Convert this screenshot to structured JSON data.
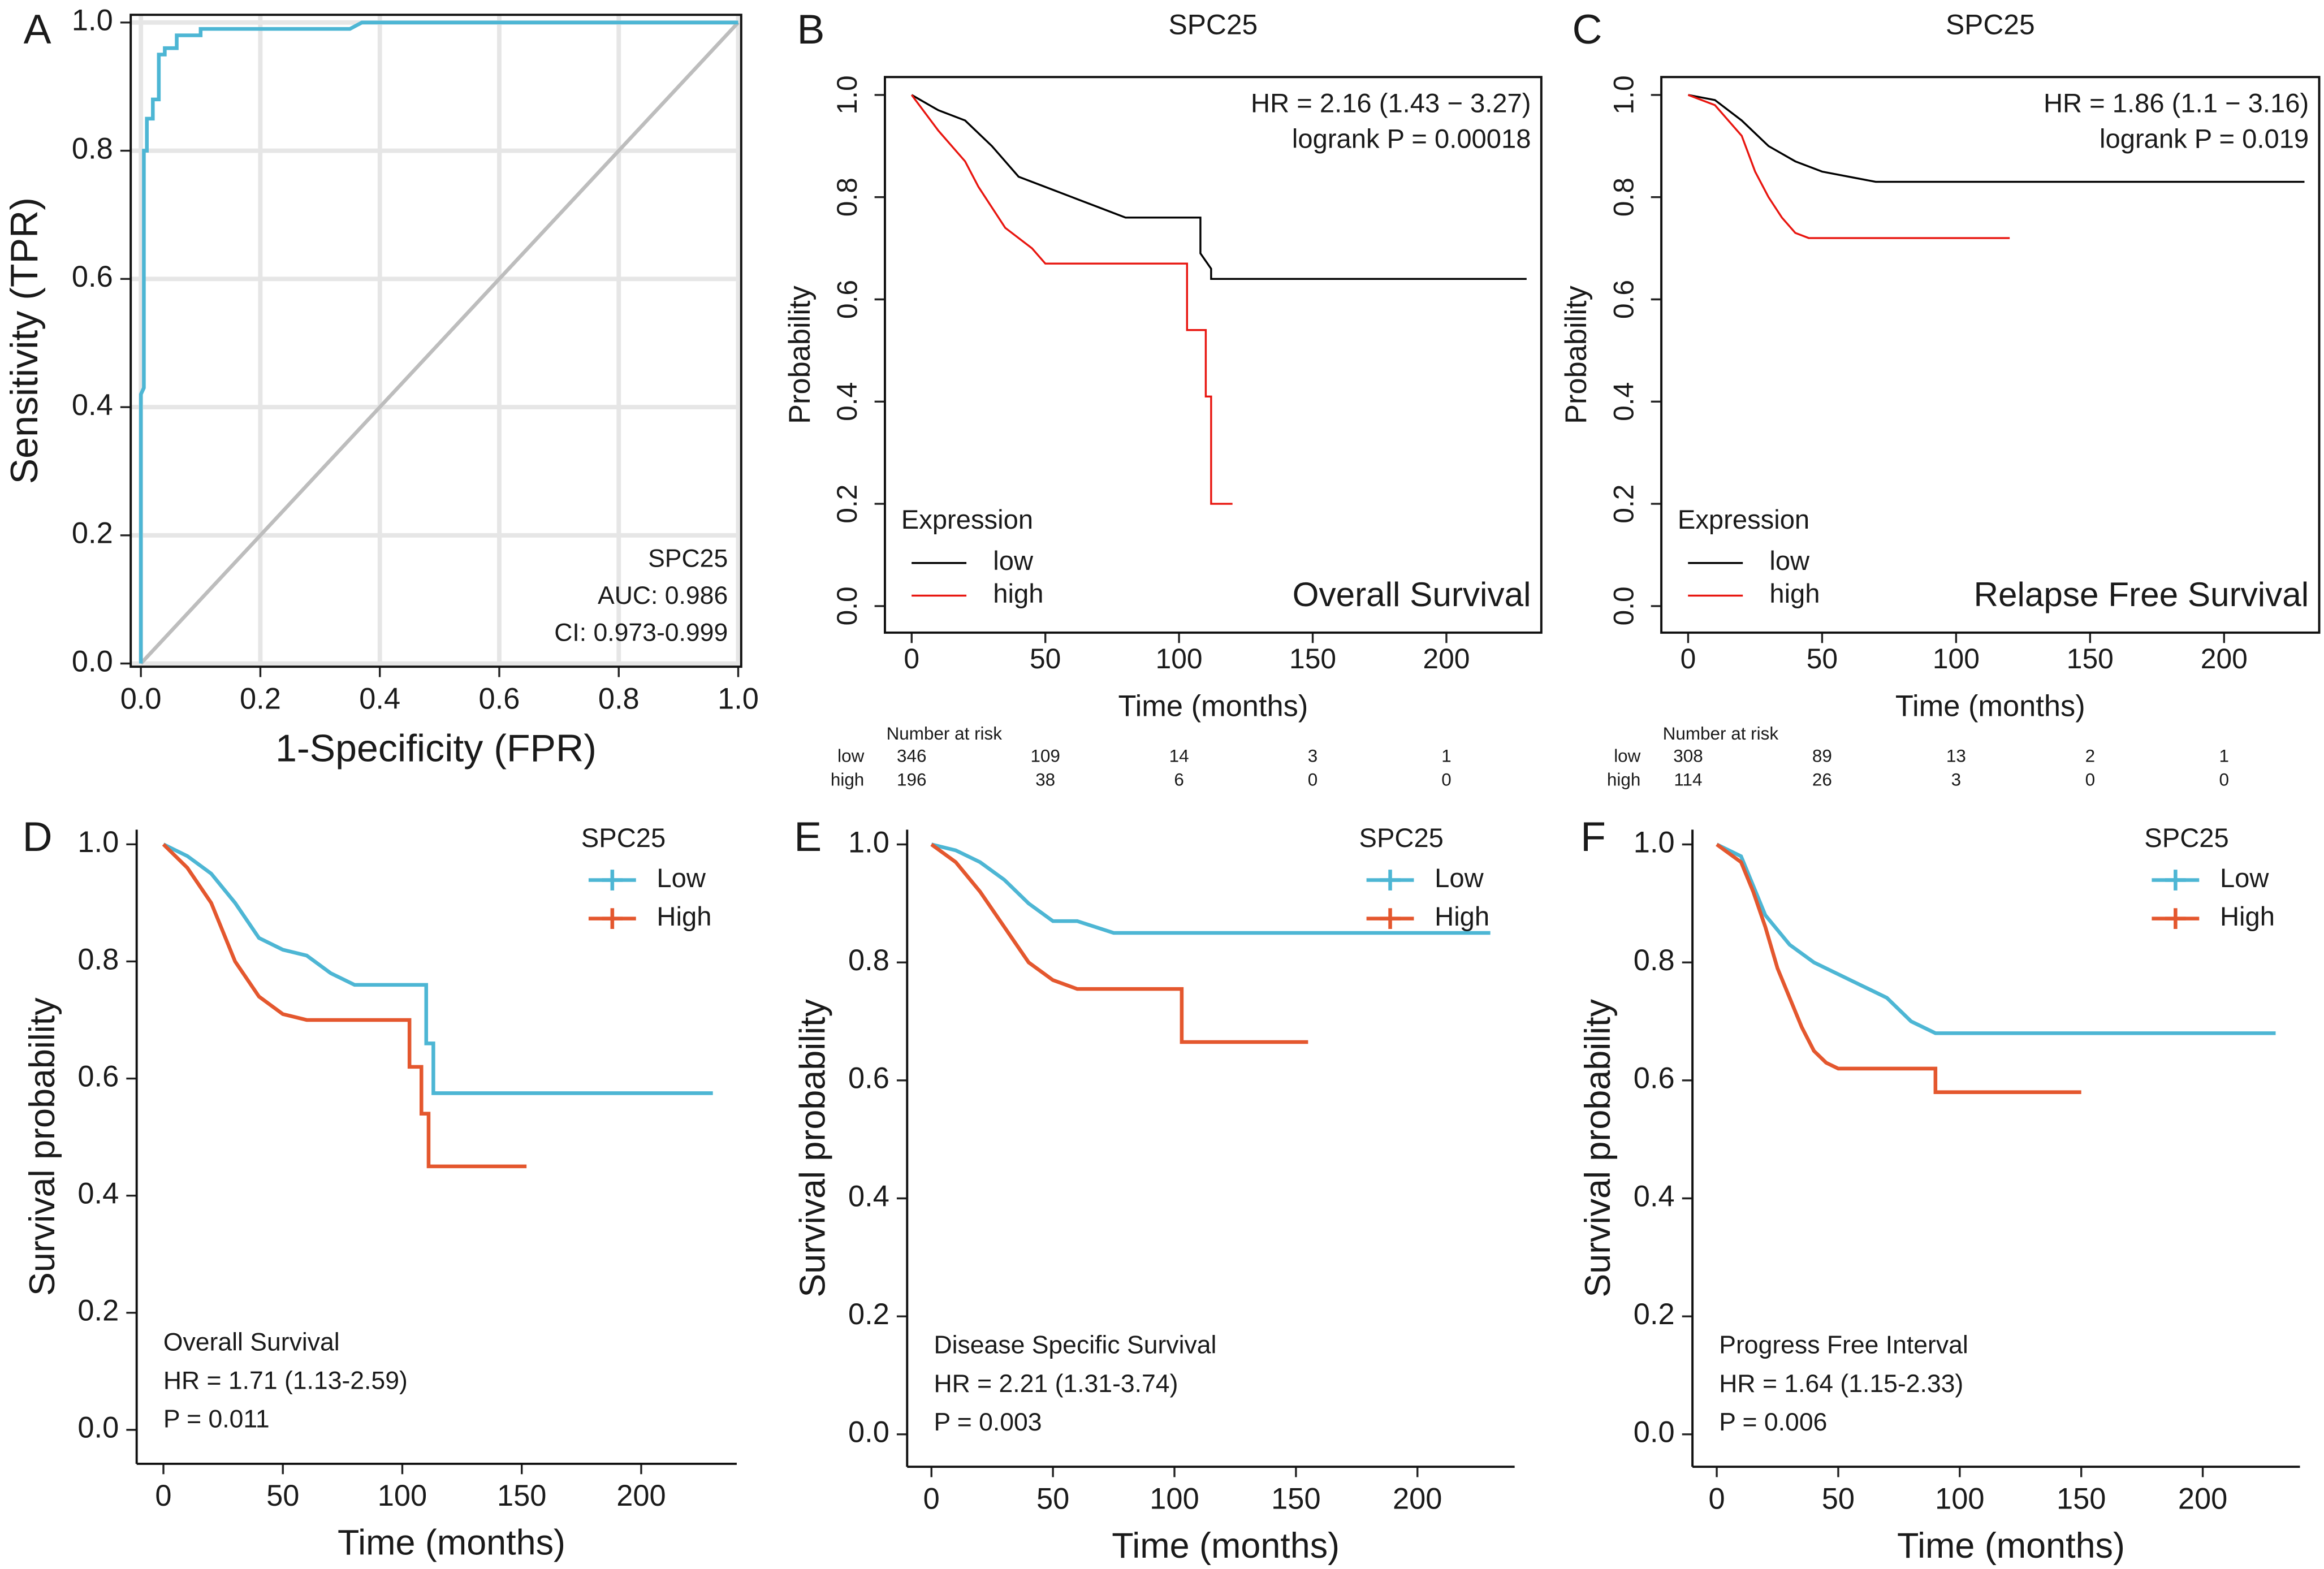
{
  "chart_data": [
    {
      "type": "line",
      "panel": "A",
      "xlabel": "1-Specificity (FPR)",
      "ylabel": "Sensitivity (TPR)",
      "annotations": [
        "SPC25",
        "AUC: 0.986",
        "CI: 0.973-0.999"
      ],
      "xlim": [
        -0.017,
        1.005
      ],
      "ylim": [
        -0.005,
        1.012
      ],
      "xticks": [
        {
          "value": 0,
          "label": "0.0"
        },
        0.2,
        0.4,
        0.6,
        0.8,
        {
          "value": 1,
          "label": "1.0"
        }
      ],
      "yticks": [
        {
          "value": 0,
          "label": "0.0"
        },
        0.2,
        0.4,
        0.6,
        0.8,
        {
          "value": 1,
          "label": "1.0"
        }
      ],
      "grid": true,
      "series": [
        {
          "color": "#bdbdbd",
          "x": [
            0,
            1
          ],
          "values": [
            0,
            1
          ]
        },
        {
          "color": "#4db6d4",
          "x": [
            0,
            0,
            0.005,
            0.005,
            0.01,
            0.01,
            0.02,
            0.02,
            0.03,
            0.03,
            0.04,
            0.04,
            0.06,
            0.06,
            0.1,
            0.1,
            0.35,
            0.37,
            1.0
          ],
          "values": [
            0,
            0.42,
            0.43,
            0.8,
            0.8,
            0.85,
            0.85,
            0.88,
            0.88,
            0.95,
            0.95,
            0.96,
            0.96,
            0.98,
            0.98,
            0.99,
            0.99,
            1.0,
            1.0
          ]
        }
      ]
    },
    {
      "type": "line",
      "panel": "B",
      "title": "SPC25",
      "xlabel": "Time (months)",
      "ylabel": "Probability",
      "annotations": [
        "HR = 2.16 (1.43 − 3.27)",
        "logrank P = 0.00018",
        "Overall Survival"
      ],
      "legend_title": "Expression",
      "xlim": [
        -10,
        235.5
      ],
      "ylim": [
        -0.052,
        1.035
      ],
      "xticks": [
        0,
        50,
        100,
        150,
        200
      ],
      "yticks": [
        {
          "value": 0,
          "label": "0.0"
        },
        0.2,
        0.4,
        0.6,
        0.8,
        {
          "value": 1,
          "label": "1.0"
        }
      ],
      "grid": false,
      "series": [
        {
          "name": "low",
          "color": "#000000",
          "x": [
            0,
            10,
            20,
            30,
            40,
            50,
            60,
            70,
            80,
            108,
            108,
            112,
            112,
            230
          ],
          "values": [
            1.0,
            0.97,
            0.95,
            0.9,
            0.84,
            0.82,
            0.8,
            0.78,
            0.76,
            0.76,
            0.69,
            0.66,
            0.64,
            0.64
          ]
        },
        {
          "name": "high",
          "color": "#e8150f",
          "x": [
            0,
            10,
            20,
            25,
            30,
            35,
            45,
            50,
            103,
            103,
            110,
            110,
            112,
            112,
            120
          ],
          "values": [
            1.0,
            0.93,
            0.87,
            0.82,
            0.78,
            0.74,
            0.7,
            0.67,
            0.67,
            0.54,
            0.54,
            0.41,
            0.41,
            0.2,
            0.2
          ]
        }
      ],
      "risk_table": {
        "title": "Number at risk",
        "rows": [
          {
            "name": "low",
            "values": [
              346,
              109,
              14,
              3,
              1
            ]
          },
          {
            "name": "high",
            "values": [
              196,
              38,
              6,
              0,
              0
            ]
          }
        ]
      }
    },
    {
      "type": "line",
      "panel": "C",
      "title": "SPC25",
      "xlabel": "Time (months)",
      "ylabel": "Probability",
      "annotations": [
        "HR = 1.86 (1.1 − 3.16)",
        "logrank P = 0.019",
        "Relapse Free Survival"
      ],
      "legend_title": "Expression",
      "xlim": [
        -10,
        235.5
      ],
      "ylim": [
        -0.052,
        1.035
      ],
      "xticks": [
        0,
        50,
        100,
        150,
        200
      ],
      "yticks": [
        {
          "value": 0,
          "label": "0.0"
        },
        0.2,
        0.4,
        0.6,
        0.8,
        {
          "value": 1,
          "label": "1.0"
        }
      ],
      "grid": false,
      "series": [
        {
          "name": "low",
          "color": "#000000",
          "x": [
            0,
            10,
            20,
            30,
            40,
            50,
            60,
            70,
            230
          ],
          "values": [
            1.0,
            0.99,
            0.95,
            0.9,
            0.87,
            0.85,
            0.84,
            0.83,
            0.83
          ]
        },
        {
          "name": "high",
          "color": "#e8150f",
          "x": [
            0,
            10,
            20,
            25,
            30,
            35,
            40,
            45,
            120
          ],
          "values": [
            1.0,
            0.98,
            0.92,
            0.85,
            0.8,
            0.76,
            0.73,
            0.72,
            0.72
          ]
        }
      ],
      "risk_table": {
        "title": "Number at risk",
        "rows": [
          {
            "name": "low",
            "values": [
              308,
              89,
              13,
              2,
              1
            ]
          },
          {
            "name": "high",
            "values": [
              114,
              26,
              3,
              0,
              0
            ]
          }
        ]
      }
    },
    {
      "type": "line",
      "panel": "D",
      "xlabel": "Time (months)",
      "ylabel": "Survival probability",
      "annotations": [
        "Overall Survival",
        "HR = 1.71 (1.13-2.59)",
        "P = 0.011"
      ],
      "legend_title": "SPC25",
      "xlim": [
        -11.2,
        240
      ],
      "ylim": [
        -0.058,
        1.025
      ],
      "xticks": [
        0,
        50,
        100,
        150,
        200
      ],
      "yticks": [
        {
          "value": 0,
          "label": "0.0"
        },
        0.2,
        0.4,
        0.6,
        0.8,
        {
          "value": 1,
          "label": "1.0"
        }
      ],
      "grid": false,
      "series": [
        {
          "name": "Low",
          "color": "#4db6d4",
          "x": [
            0,
            10,
            20,
            30,
            40,
            50,
            60,
            70,
            80,
            100,
            110,
            110,
            113,
            113,
            230
          ],
          "values": [
            1.0,
            0.98,
            0.95,
            0.9,
            0.84,
            0.82,
            0.81,
            0.78,
            0.76,
            0.76,
            0.76,
            0.66,
            0.66,
            0.575,
            0.575
          ]
        },
        {
          "name": "High",
          "color": "#e4572e",
          "x": [
            0,
            10,
            20,
            30,
            40,
            50,
            60,
            70,
            103,
            103,
            108,
            108,
            111,
            111,
            152
          ],
          "values": [
            1.0,
            0.96,
            0.9,
            0.8,
            0.74,
            0.71,
            0.7,
            0.7,
            0.7,
            0.62,
            0.62,
            0.54,
            0.54,
            0.45,
            0.45
          ]
        }
      ]
    },
    {
      "type": "line",
      "panel": "E",
      "xlabel": "Time (months)",
      "ylabel": "Survival probability",
      "annotations": [
        "Disease Specific Survival",
        "HR = 2.21 (1.31-3.74)",
        "P = 0.003"
      ],
      "legend_title": "SPC25",
      "xlim": [
        -10,
        240
      ],
      "ylim": [
        -0.055,
        1.025
      ],
      "xticks": [
        0,
        50,
        100,
        150,
        200
      ],
      "yticks": [
        {
          "value": 0,
          "label": "0.0"
        },
        0.2,
        0.4,
        0.6,
        0.8,
        {
          "value": 1,
          "label": "1.0"
        }
      ],
      "grid": false,
      "series": [
        {
          "name": "Low",
          "color": "#4db6d4",
          "x": [
            0,
            10,
            20,
            30,
            40,
            50,
            60,
            75,
            230
          ],
          "values": [
            1.0,
            0.99,
            0.97,
            0.94,
            0.9,
            0.87,
            0.87,
            0.85,
            0.85
          ]
        },
        {
          "name": "High",
          "color": "#e4572e",
          "x": [
            0,
            10,
            20,
            30,
            40,
            50,
            60,
            103,
            103,
            155
          ],
          "values": [
            1.0,
            0.97,
            0.92,
            0.86,
            0.8,
            0.77,
            0.755,
            0.755,
            0.665,
            0.665
          ]
        }
      ]
    },
    {
      "type": "line",
      "panel": "F",
      "xlabel": "Time (months)",
      "ylabel": "Survival probability",
      "annotations": [
        "Progress Free Interval",
        "HR = 1.64 (1.15-2.33)",
        "P = 0.006"
      ],
      "legend_title": "SPC25",
      "xlim": [
        -10,
        240
      ],
      "ylim": [
        -0.055,
        1.025
      ],
      "xticks": [
        0,
        50,
        100,
        150,
        200
      ],
      "yticks": [
        {
          "value": 0,
          "label": "0.0"
        },
        0.2,
        0.4,
        0.6,
        0.8,
        {
          "value": 1,
          "label": "1.0"
        }
      ],
      "grid": false,
      "series": [
        {
          "name": "Low",
          "color": "#4db6d4",
          "x": [
            0,
            10,
            15,
            20,
            30,
            40,
            50,
            60,
            70,
            80,
            90,
            230
          ],
          "values": [
            1.0,
            0.98,
            0.93,
            0.88,
            0.83,
            0.8,
            0.78,
            0.76,
            0.74,
            0.7,
            0.68,
            0.68
          ]
        },
        {
          "name": "High",
          "color": "#e4572e",
          "x": [
            0,
            10,
            15,
            20,
            25,
            30,
            35,
            40,
            45,
            50,
            60,
            90,
            90,
            150
          ],
          "values": [
            1.0,
            0.97,
            0.92,
            0.86,
            0.79,
            0.74,
            0.69,
            0.65,
            0.63,
            0.62,
            0.62,
            0.62,
            0.58,
            0.58
          ]
        }
      ]
    }
  ]
}
